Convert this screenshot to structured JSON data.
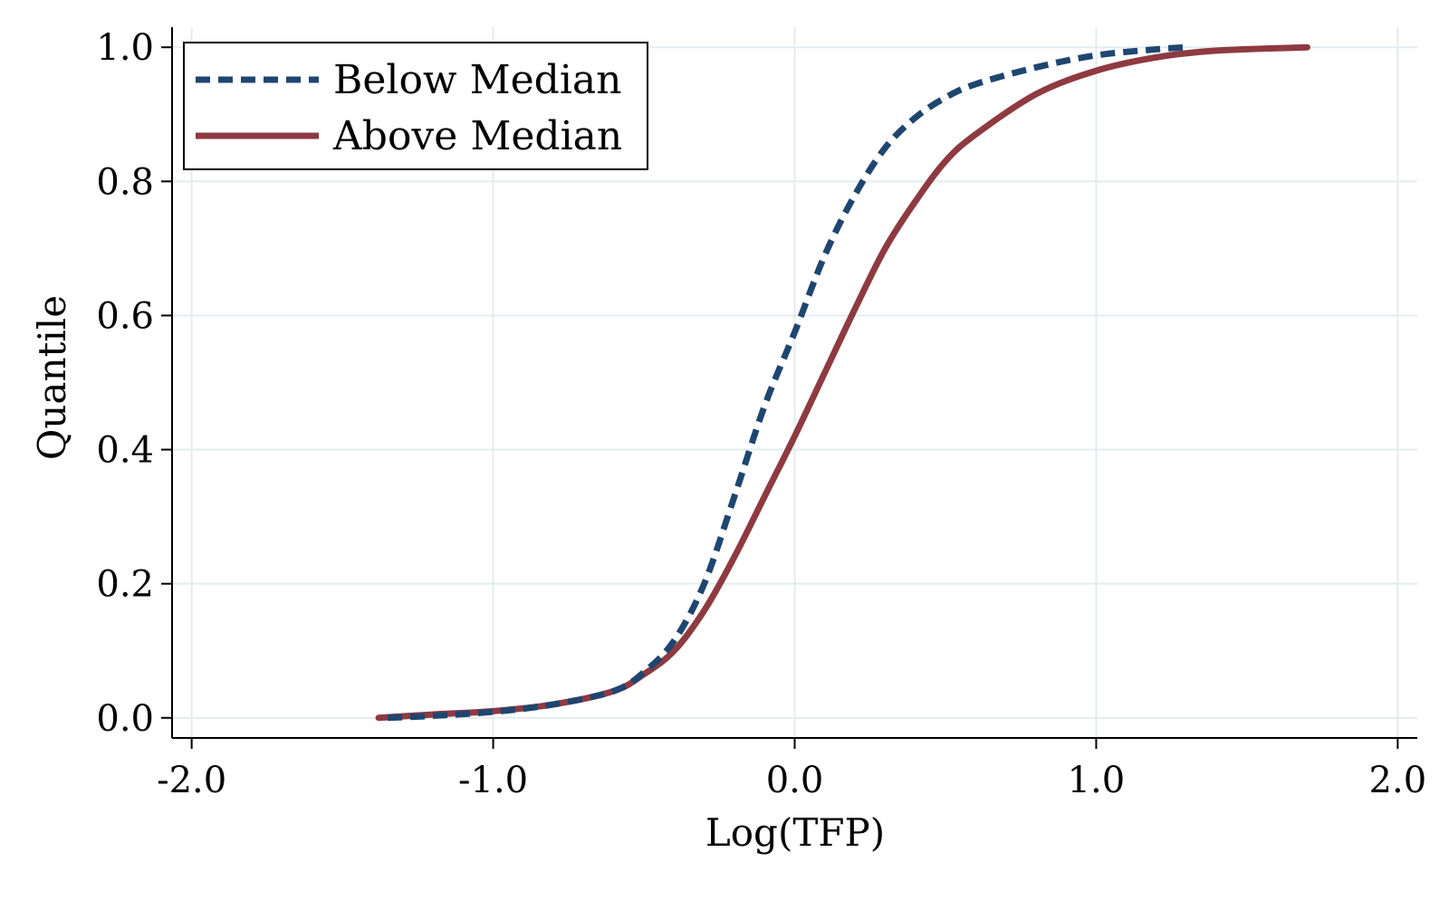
{
  "chart_data": {
    "type": "line",
    "title": "",
    "xlabel": "Log(TFP)",
    "ylabel": "Quantile",
    "xlim": [
      -2.065,
      2.065
    ],
    "ylim": [
      -0.03,
      1.03
    ],
    "x_ticks": [
      -2.0,
      -1.0,
      0.0,
      1.0,
      2.0
    ],
    "x_tick_labels": [
      "-2.0",
      "-1.0",
      "0.0",
      "1.0",
      "2.0"
    ],
    "y_ticks": [
      0.0,
      0.2,
      0.4,
      0.6,
      0.8,
      1.0
    ],
    "y_tick_labels": [
      "0.0",
      "0.2",
      "0.4",
      "0.6",
      "0.8",
      "1.0"
    ],
    "grid": true,
    "legend": {
      "position": "top-left",
      "entries": [
        "Below Median",
        "Above Median"
      ]
    },
    "series": [
      {
        "name": "Below Median",
        "color": "#1f4670",
        "dash": "dashed",
        "x": [
          -1.35,
          -1.2,
          -1.0,
          -0.8,
          -0.6,
          -0.5,
          -0.4,
          -0.3,
          -0.2,
          -0.1,
          0.0,
          0.1,
          0.2,
          0.3,
          0.4,
          0.5,
          0.6,
          0.8,
          1.0,
          1.2,
          1.3
        ],
        "y": [
          0.0,
          0.003,
          0.009,
          0.02,
          0.04,
          0.068,
          0.115,
          0.2,
          0.33,
          0.465,
          0.575,
          0.69,
          0.78,
          0.85,
          0.895,
          0.925,
          0.945,
          0.97,
          0.988,
          0.997,
          1.0
        ]
      },
      {
        "name": "Above Median",
        "color": "#8e3a41",
        "dash": "solid",
        "x": [
          -1.38,
          -1.2,
          -1.0,
          -0.8,
          -0.6,
          -0.5,
          -0.4,
          -0.3,
          -0.2,
          -0.1,
          0.0,
          0.1,
          0.2,
          0.3,
          0.4,
          0.5,
          0.6,
          0.8,
          1.0,
          1.2,
          1.4,
          1.7
        ],
        "y": [
          0.0,
          0.005,
          0.01,
          0.02,
          0.04,
          0.065,
          0.1,
          0.16,
          0.24,
          0.33,
          0.42,
          0.515,
          0.61,
          0.7,
          0.77,
          0.83,
          0.87,
          0.93,
          0.965,
          0.985,
          0.995,
          1.0
        ]
      }
    ]
  }
}
